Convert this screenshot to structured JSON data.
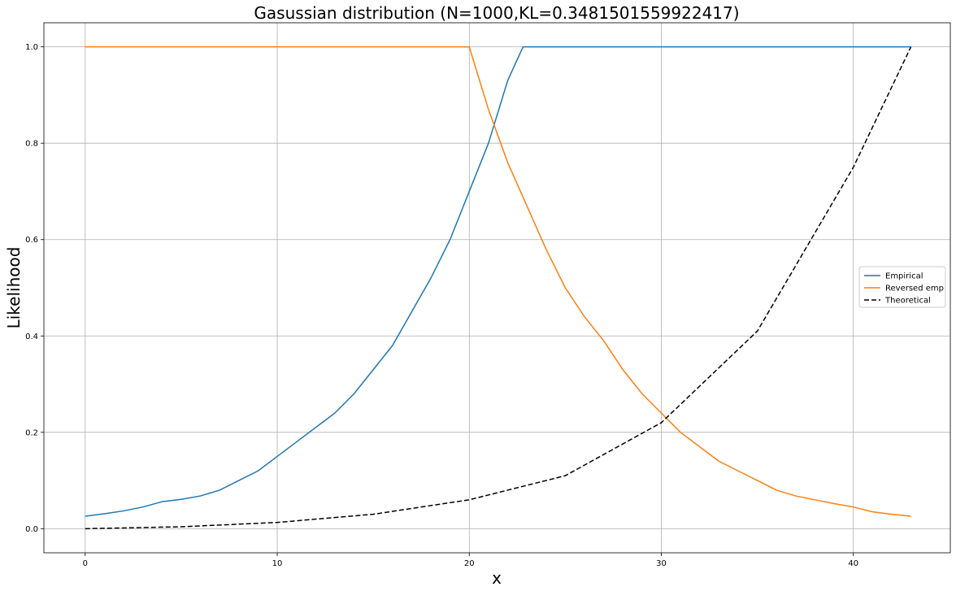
{
  "chart_data": {
    "type": "line",
    "title": "Gasussian distribution (N=1000,KL=0.3481501559922417)",
    "xlabel": "x",
    "ylabel": "Likelihood",
    "xlim": [
      -2.15,
      45.05
    ],
    "ylim": [
      -0.05,
      1.05
    ],
    "xticks": [
      0,
      10,
      20,
      30,
      40
    ],
    "yticks": [
      0.0,
      0.2,
      0.4,
      0.6,
      0.8,
      1.0
    ],
    "xtick_labels": [
      "0",
      "10",
      "20",
      "30",
      "40"
    ],
    "ytick_labels": [
      "0.0",
      "0.2",
      "0.4",
      "0.6",
      "0.8",
      "1.0"
    ],
    "grid": true,
    "legend_position": "center-right",
    "series": [
      {
        "name": "Empirical",
        "color": "#1f77b4",
        "style": "solid",
        "x": [
          0,
          1,
          2,
          3,
          4,
          5,
          6,
          7,
          8,
          9,
          10,
          11,
          12,
          13,
          14,
          15,
          16,
          17,
          18,
          19,
          20,
          21,
          22,
          22.8,
          43
        ],
        "y": [
          0.026,
          0.031,
          0.037,
          0.045,
          0.056,
          0.061,
          0.068,
          0.08,
          0.1,
          0.12,
          0.15,
          0.18,
          0.21,
          0.24,
          0.28,
          0.33,
          0.38,
          0.45,
          0.52,
          0.6,
          0.7,
          0.8,
          0.93,
          1.0,
          1.0
        ]
      },
      {
        "name": "Reversed emp",
        "color": "#ff7f0e",
        "style": "solid",
        "x": [
          0,
          20,
          21,
          22,
          23,
          24,
          25,
          26,
          27,
          28,
          29,
          30,
          31,
          32,
          33,
          34,
          35,
          36,
          37,
          38,
          39,
          40,
          41,
          42,
          43
        ],
        "y": [
          1.0,
          1.0,
          0.87,
          0.76,
          0.67,
          0.58,
          0.5,
          0.44,
          0.39,
          0.33,
          0.28,
          0.24,
          0.2,
          0.17,
          0.14,
          0.12,
          0.1,
          0.08,
          0.068,
          0.06,
          0.052,
          0.045,
          0.035,
          0.03,
          0.026
        ]
      },
      {
        "name": "Theoretical",
        "color": "#000000",
        "style": "dashed",
        "x": [
          0,
          5,
          10,
          15,
          20,
          25,
          30,
          35,
          40,
          43
        ],
        "y": [
          0.0,
          0.004,
          0.013,
          0.03,
          0.06,
          0.11,
          0.22,
          0.41,
          0.75,
          1.0
        ]
      }
    ]
  }
}
